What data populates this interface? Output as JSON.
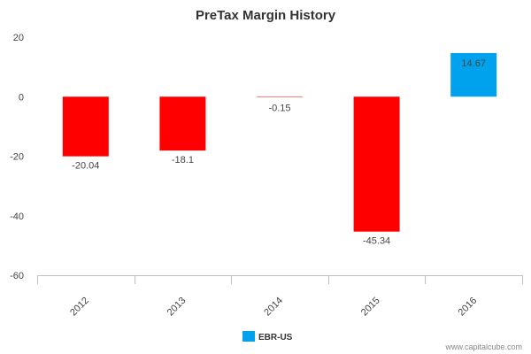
{
  "chart_data": {
    "type": "bar",
    "title": "PreTax Margin History",
    "categories": [
      "2012",
      "2013",
      "2014",
      "2015",
      "2016"
    ],
    "series": [
      {
        "name": "EBR-US",
        "values": [
          -20.04,
          -18.1,
          -0.15,
          -45.34,
          14.67
        ],
        "value_labels": [
          "-20.04",
          "-18.1",
          "-0.15",
          "-45.34",
          "14.67"
        ],
        "legend_color": "#00a2ed"
      }
    ],
    "bar_colors": {
      "negative": "#ff0000",
      "positive": "#00a2ed"
    },
    "ylim": [
      -60,
      20
    ],
    "yticks": [
      20,
      0,
      -20,
      -40,
      -60
    ],
    "xlabel": "",
    "ylabel": "",
    "grid": false,
    "legend_position": "bottom-center"
  },
  "credit": "www.capitalcube.com"
}
